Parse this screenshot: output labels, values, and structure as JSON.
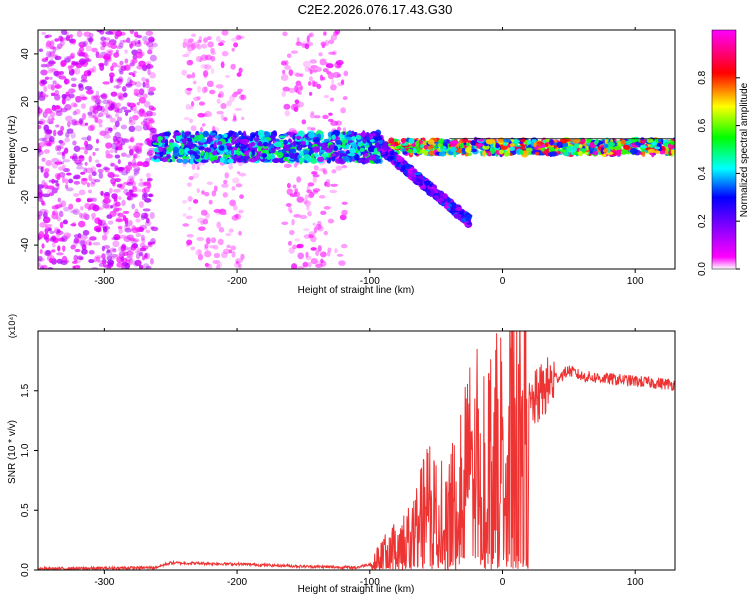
{
  "title": "C2E2.2026.076.17.43.G30",
  "chart_data": [
    {
      "type": "heatmap",
      "xlabel": "Height of straight line (km)",
      "ylabel": "Frequency (Hz)",
      "xlim": [
        -350,
        130
      ],
      "ylim": [
        -50,
        50
      ],
      "xticks": [
        -300,
        -200,
        -100,
        0,
        100
      ],
      "yticks": [
        -40,
        -20,
        0,
        20,
        40
      ],
      "colorbar": {
        "label": "Normalized spectral amplitude",
        "range": [
          0,
          1
        ],
        "ticks": [
          "0.0",
          "0.2",
          "0.4",
          "0.6",
          "0.8"
        ],
        "colormap": [
          "#ffffff",
          "#ff00ff",
          "#8000ff",
          "#0000ff",
          "#00ffff",
          "#00ff00",
          "#ffff00",
          "#ff0000",
          "#ff00ff"
        ]
      },
      "regions": [
        {
          "x_range": [
            -350,
            -262
          ],
          "f_range": [
            -50,
            50
          ],
          "amplitude": 0.08,
          "note": "noise"
        },
        {
          "x_range": [
            -240,
            -195
          ],
          "f_range": [
            -50,
            50
          ],
          "amplitude": 0.03,
          "note": "sparse noise"
        },
        {
          "x_range": [
            -165,
            -118
          ],
          "f_range": [
            -50,
            50
          ],
          "amplitude": 0.04,
          "note": "sparse noise"
        },
        {
          "x_range": [
            -262,
            -90
          ],
          "f_range": [
            -5,
            7
          ],
          "amplitude": 0.3,
          "note": "main signal"
        },
        {
          "x_range": [
            -90,
            130
          ],
          "f_range": [
            -2,
            4
          ],
          "amplitude": 0.55,
          "note": "main signal"
        },
        {
          "x_range": [
            -90,
            -25
          ],
          "f_range": [
            -30,
            0
          ],
          "amplitude": 0.2,
          "note": "descending branch"
        }
      ]
    },
    {
      "type": "line",
      "xlabel": "Height of straight line (km)",
      "ylabel": "SNR (10 * v/v)",
      "y_multiplier": "(x10⁴)",
      "xlim": [
        -350,
        130
      ],
      "ylim": [
        0,
        2.0
      ],
      "xticks": [
        -300,
        -200,
        -100,
        0,
        100
      ],
      "yticks": [
        "0.0",
        "0.5",
        "1.0",
        "1.5"
      ],
      "color": "#ee3333",
      "series": [
        {
          "name": "SNR",
          "x": [
            -350,
            -300,
            -262,
            -250,
            -200,
            -150,
            -110,
            -100,
            -90,
            -70,
            -55,
            -45,
            -40,
            -30,
            -20,
            -10,
            0,
            5,
            10,
            20,
            30,
            40,
            50,
            60,
            80,
            100,
            120,
            130
          ],
          "y": [
            0.01,
            0.015,
            0.02,
            0.06,
            0.05,
            0.03,
            0.02,
            0.05,
            0.15,
            0.3,
            0.6,
            0.5,
            0.7,
            0.8,
            1.1,
            1.0,
            1.15,
            1.25,
            1.2,
            1.35,
            1.5,
            1.6,
            1.67,
            1.62,
            1.6,
            1.58,
            1.56,
            1.55
          ]
        }
      ]
    }
  ]
}
